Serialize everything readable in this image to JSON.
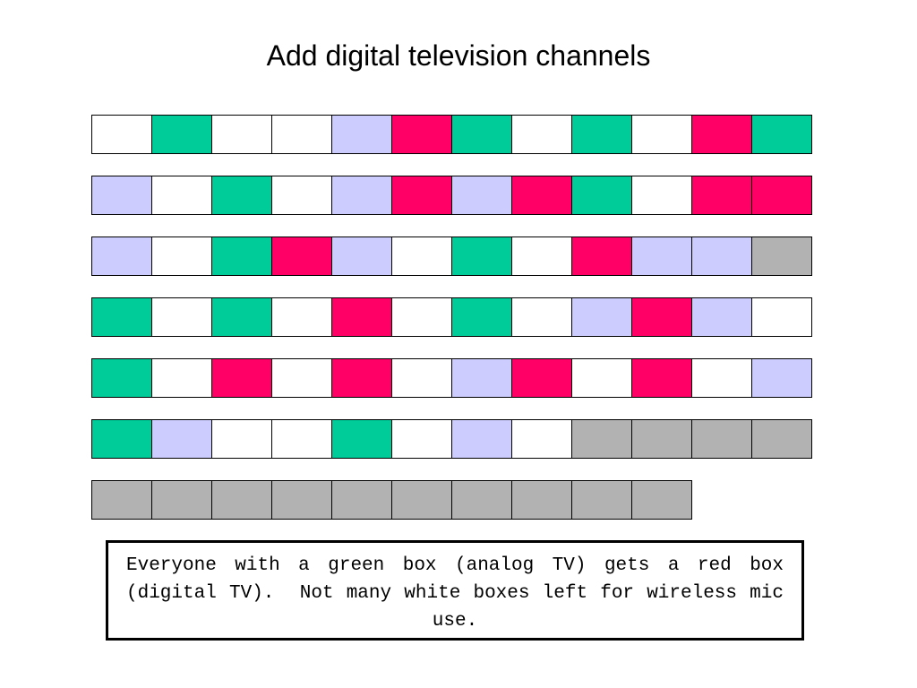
{
  "title": "Add digital television channels",
  "legend_colors": {
    "white": "#ffffff",
    "green": "#00cc99",
    "red": "#ff0066",
    "lavender": "#ccccff",
    "gray": "#b2b2b2"
  },
  "rows": [
    [
      "white",
      "green",
      "white",
      "white",
      "lavender",
      "red",
      "green",
      "white",
      "green",
      "white",
      "red",
      "green"
    ],
    [
      "lavender",
      "white",
      "green",
      "white",
      "lavender",
      "red",
      "lavender",
      "red",
      "green",
      "white",
      "red",
      "red"
    ],
    [
      "lavender",
      "white",
      "green",
      "red",
      "lavender",
      "white",
      "green",
      "white",
      "red",
      "lavender",
      "lavender",
      "gray"
    ],
    [
      "green",
      "white",
      "green",
      "white",
      "red",
      "white",
      "green",
      "white",
      "lavender",
      "red",
      "lavender",
      "white"
    ],
    [
      "green",
      "white",
      "red",
      "white",
      "red",
      "white",
      "lavender",
      "red",
      "white",
      "red",
      "white",
      "lavender"
    ],
    [
      "green",
      "lavender",
      "white",
      "white",
      "green",
      "white",
      "lavender",
      "white",
      "gray",
      "gray",
      "gray",
      "gray"
    ],
    [
      "gray",
      "gray",
      "gray",
      "gray",
      "gray",
      "gray",
      "gray",
      "gray",
      "gray",
      "gray"
    ]
  ],
  "caption": "Everyone with a green box (analog TV) gets a red box (digital TV).  Not many white boxes left for wireless mic use."
}
